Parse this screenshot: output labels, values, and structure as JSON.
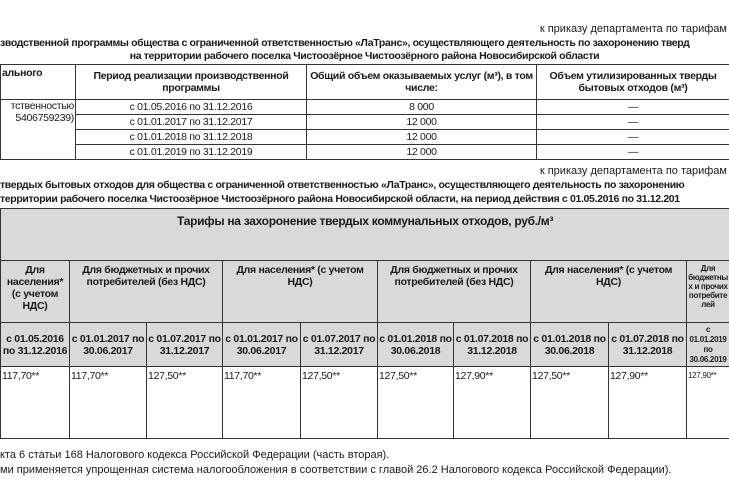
{
  "section1": {
    "order_note": "к приказу департамента по тарифам",
    "title_line1": "зводственной программы общества с ограниченной ответственностью «ЛаТранс», осуществляющего деятельность по захоронению тверд",
    "title_line2": "на территории рабочего поселка Чистоозёрное Чистоозёрного района Новосибирской области",
    "headers": [
      "ального",
      "Период реализации производственной программы",
      "Общий объем оказываемых услуг (м³), в том числе:",
      "Объем утилизированных тверды бытовых отходов (м³)"
    ],
    "org_fragments": [
      "тственностью",
      "5406759239)"
    ],
    "rows": [
      {
        "period": "с 01.05.2016 по 31.12.2016",
        "volume": "8 000",
        "utilized": "—"
      },
      {
        "period": "с 01.01.2017 по 31.12.2017",
        "volume": "12 000",
        "utilized": "—"
      },
      {
        "period": "с 01.01.2018 по 31.12.2018",
        "volume": "12 000",
        "utilized": "—"
      },
      {
        "period": "с 01.01.2019 по 31.12.2019",
        "volume": "12 000",
        "utilized": "—"
      }
    ]
  },
  "section2": {
    "order_note": "к приказу департамента по тарифам",
    "title_line1": "твердых бытовых отходов для общества с ограниченной ответственностью «ЛаТранс», осуществляющего деятельность по захоронению",
    "title_line2": "территории рабочего поселка Чистоозёрное Чистоозёрного района Новосибирской области, на период действия с 01.05.2016 по 31.12.201",
    "table_title": "Тарифы на захоронение твердых коммунальных отходов, руб./м³",
    "groups": [
      "Для населения* (с учетом НДС)",
      "Для бюджетных и прочих потребителей (без НДС)",
      "Для населения* (с учетом НДС)",
      "Для бюджетных и прочих потребителей (без НДС)",
      "Для населения* (с учетом НДС)",
      "Для бюджетных и прочих потребителей"
    ],
    "periods": [
      "с 01.05.2016 по 31.12.2016",
      "с 01.01.2017 по 30.06.2017",
      "с 01.07.2017 по 31.12.2017",
      "с 01.01.2017 по 30.06.2017",
      "с 01.07.2017 по 31.12.2017",
      "с 01.01.2018 по 30.06.2018",
      "с 01.07.2018 по 31.12.2018",
      "с 01.01.2018 по 30.06.2018",
      "с 01.07.2018 по 31.12.2018",
      "с 01.01.2019 по 30.06.2019"
    ],
    "values": [
      "117,70**",
      "117,70**",
      "127,50**",
      "117,70**",
      "127,50**",
      "127,50**",
      "127,90**",
      "127,50**",
      "127,90**",
      "127,90**"
    ],
    "footnote1": "кта 6 статьи 168 Налогового кодекса Российской Федерации (часть вторая).",
    "footnote2": "ми применяется упрощенная система налогообложения в соответствии с главой 26.2 Налогового кодекса Российской Федерации)."
  }
}
